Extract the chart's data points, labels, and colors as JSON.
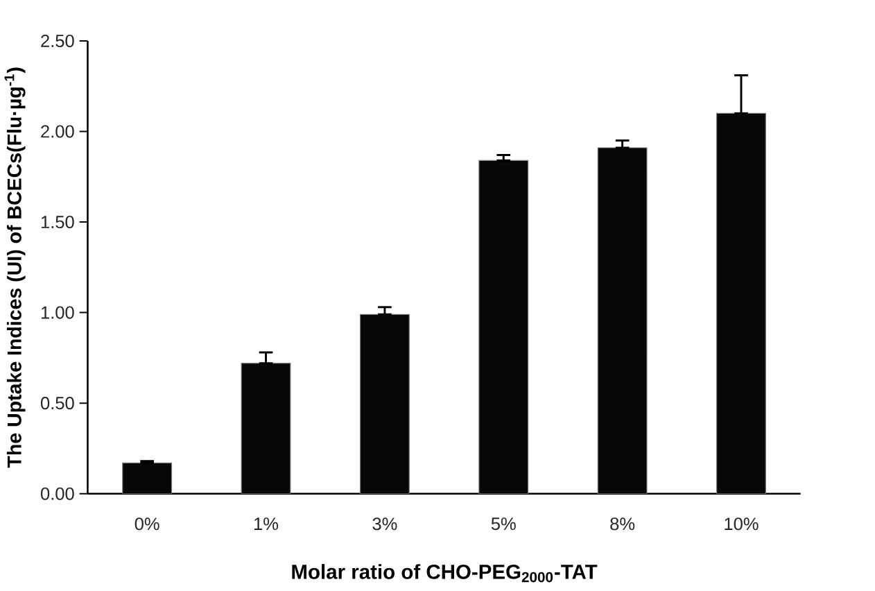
{
  "chart_data": {
    "type": "bar",
    "xlabel": "Molar ratio of CHO-PEG$_{2000}$-TAT",
    "ylabel": "The Uptake Indices (UI) of BCECs(Flu·µg$^{-1}$)",
    "categories": [
      "0%",
      "1%",
      "3%",
      "5%",
      "8%",
      "10%"
    ],
    "values": [
      0.17,
      0.72,
      0.99,
      1.84,
      1.91,
      2.1
    ],
    "errors": [
      [
        0.17,
        0.18
      ],
      [
        0.72,
        0.78
      ],
      [
        0.99,
        1.03
      ],
      [
        1.84,
        1.87
      ],
      [
        1.91,
        1.95
      ],
      [
        2.1,
        2.31
      ]
    ],
    "color": "#050807",
    "ylim": [
      0,
      2.5
    ],
    "yticks": [
      {
        "value": 0,
        "label": "0.00"
      },
      {
        "value": 0.5,
        "label": "0.50"
      },
      {
        "value": 1,
        "label": "1.00"
      },
      {
        "value": 1.5,
        "label": "1.50"
      },
      {
        "value": 2,
        "label": "2.00"
      },
      {
        "value": 2.5,
        "label": "2.50"
      }
    ]
  }
}
